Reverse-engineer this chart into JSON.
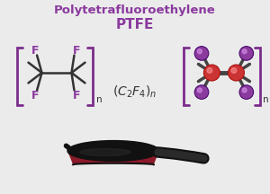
{
  "title1": "Polytetrafluoroethylene",
  "title2": "PTFE",
  "title_color": "#7B2D8B",
  "purple_color": "#8B3A9E",
  "atom_F_color": "#8B3A9E",
  "atom_C_color": "#CC3333",
  "bond_color": "#333333",
  "bracket_color": "#7B2D8B",
  "background_color": "#EBEBEB",
  "pan_body_color": "#111111",
  "pan_rim_color": "#8B1A2A",
  "pan_handle_color": "#111111",
  "xlim": [
    0,
    10
  ],
  "ylim": [
    0,
    7.2
  ],
  "figsize": [
    3.0,
    2.16
  ],
  "dpi": 100
}
